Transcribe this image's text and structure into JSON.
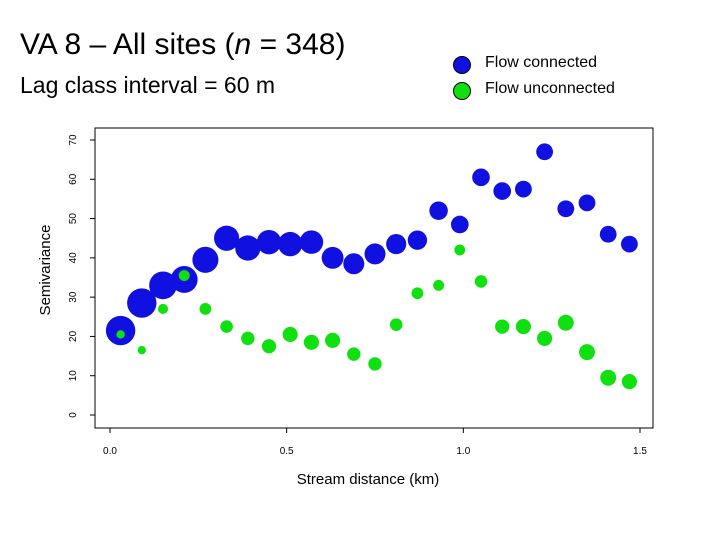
{
  "header": {
    "title_prefix": "VA 8 – All sites (",
    "title_italic": "n",
    "title_suffix": " = 348)",
    "subtitle": "Lag class interval = 60 m"
  },
  "chart_data": {
    "type": "scatter",
    "xlabel": "Stream distance (km)",
    "ylabel": "Semivariance",
    "xlim": [
      0,
      1.5
    ],
    "ylim": [
      0,
      70
    ],
    "x_ticks": [
      "0.0",
      "0.5",
      "1.0",
      "1.5"
    ],
    "x_tick_values": [
      0,
      0.5,
      1.0,
      1.5
    ],
    "y_ticks": [
      "0",
      "10",
      "20",
      "30",
      "40",
      "50",
      "60",
      "70"
    ],
    "y_tick_values": [
      0,
      10,
      20,
      30,
      40,
      50,
      60,
      70
    ],
    "grid": false,
    "legend_position": "top-right",
    "series": [
      {
        "name": "Flow connected",
        "color": "#1010e0",
        "points": [
          {
            "x": 0.03,
            "y": 21.5,
            "size": 3.5
          },
          {
            "x": 0.09,
            "y": 28.5,
            "size": 3.5
          },
          {
            "x": 0.15,
            "y": 33.0,
            "size": 3.3
          },
          {
            "x": 0.21,
            "y": 34.5,
            "size": 3.2
          },
          {
            "x": 0.27,
            "y": 39.5,
            "size": 3.1
          },
          {
            "x": 0.33,
            "y": 45.0,
            "size": 3.0
          },
          {
            "x": 0.39,
            "y": 42.5,
            "size": 3.0
          },
          {
            "x": 0.45,
            "y": 44.0,
            "size": 2.9
          },
          {
            "x": 0.51,
            "y": 43.5,
            "size": 2.9
          },
          {
            "x": 0.57,
            "y": 44.0,
            "size": 2.8
          },
          {
            "x": 0.63,
            "y": 40.0,
            "size": 2.6
          },
          {
            "x": 0.69,
            "y": 38.5,
            "size": 2.5
          },
          {
            "x": 0.75,
            "y": 41.0,
            "size": 2.5
          },
          {
            "x": 0.81,
            "y": 43.5,
            "size": 2.4
          },
          {
            "x": 0.87,
            "y": 44.5,
            "size": 2.3
          },
          {
            "x": 0.93,
            "y": 52.0,
            "size": 2.2
          },
          {
            "x": 0.99,
            "y": 48.5,
            "size": 2.1
          },
          {
            "x": 1.05,
            "y": 60.5,
            "size": 2.1
          },
          {
            "x": 1.11,
            "y": 57.0,
            "size": 2.1
          },
          {
            "x": 1.17,
            "y": 57.5,
            "size": 2.0
          },
          {
            "x": 1.23,
            "y": 67.0,
            "size": 2.0
          },
          {
            "x": 1.29,
            "y": 52.5,
            "size": 2.0
          },
          {
            "x": 1.35,
            "y": 54.0,
            "size": 2.0
          },
          {
            "x": 1.41,
            "y": 46.0,
            "size": 2.0
          },
          {
            "x": 1.47,
            "y": 43.5,
            "size": 2.0
          }
        ]
      },
      {
        "name": "Flow unconnected",
        "color": "#10e010",
        "points": [
          {
            "x": 0.03,
            "y": 20.5,
            "size": 1.0
          },
          {
            "x": 0.09,
            "y": 16.5,
            "size": 1.0
          },
          {
            "x": 0.15,
            "y": 27.0,
            "size": 1.2
          },
          {
            "x": 0.21,
            "y": 35.5,
            "size": 1.3
          },
          {
            "x": 0.27,
            "y": 27.0,
            "size": 1.4
          },
          {
            "x": 0.33,
            "y": 22.5,
            "size": 1.5
          },
          {
            "x": 0.39,
            "y": 19.5,
            "size": 1.6
          },
          {
            "x": 0.45,
            "y": 17.5,
            "size": 1.7
          },
          {
            "x": 0.51,
            "y": 20.5,
            "size": 1.8
          },
          {
            "x": 0.57,
            "y": 18.5,
            "size": 1.8
          },
          {
            "x": 0.63,
            "y": 19.0,
            "size": 1.8
          },
          {
            "x": 0.69,
            "y": 15.5,
            "size": 1.6
          },
          {
            "x": 0.75,
            "y": 13.0,
            "size": 1.6
          },
          {
            "x": 0.81,
            "y": 23.0,
            "size": 1.5
          },
          {
            "x": 0.87,
            "y": 31.0,
            "size": 1.4
          },
          {
            "x": 0.93,
            "y": 33.0,
            "size": 1.3
          },
          {
            "x": 0.99,
            "y": 42.0,
            "size": 1.3
          },
          {
            "x": 1.05,
            "y": 34.0,
            "size": 1.5
          },
          {
            "x": 1.11,
            "y": 22.5,
            "size": 1.7
          },
          {
            "x": 1.17,
            "y": 22.5,
            "size": 1.8
          },
          {
            "x": 1.23,
            "y": 19.5,
            "size": 1.8
          },
          {
            "x": 1.29,
            "y": 23.5,
            "size": 1.9
          },
          {
            "x": 1.35,
            "y": 16.0,
            "size": 1.9
          },
          {
            "x": 1.41,
            "y": 9.5,
            "size": 1.9
          },
          {
            "x": 1.47,
            "y": 8.5,
            "size": 1.8
          }
        ]
      }
    ]
  }
}
